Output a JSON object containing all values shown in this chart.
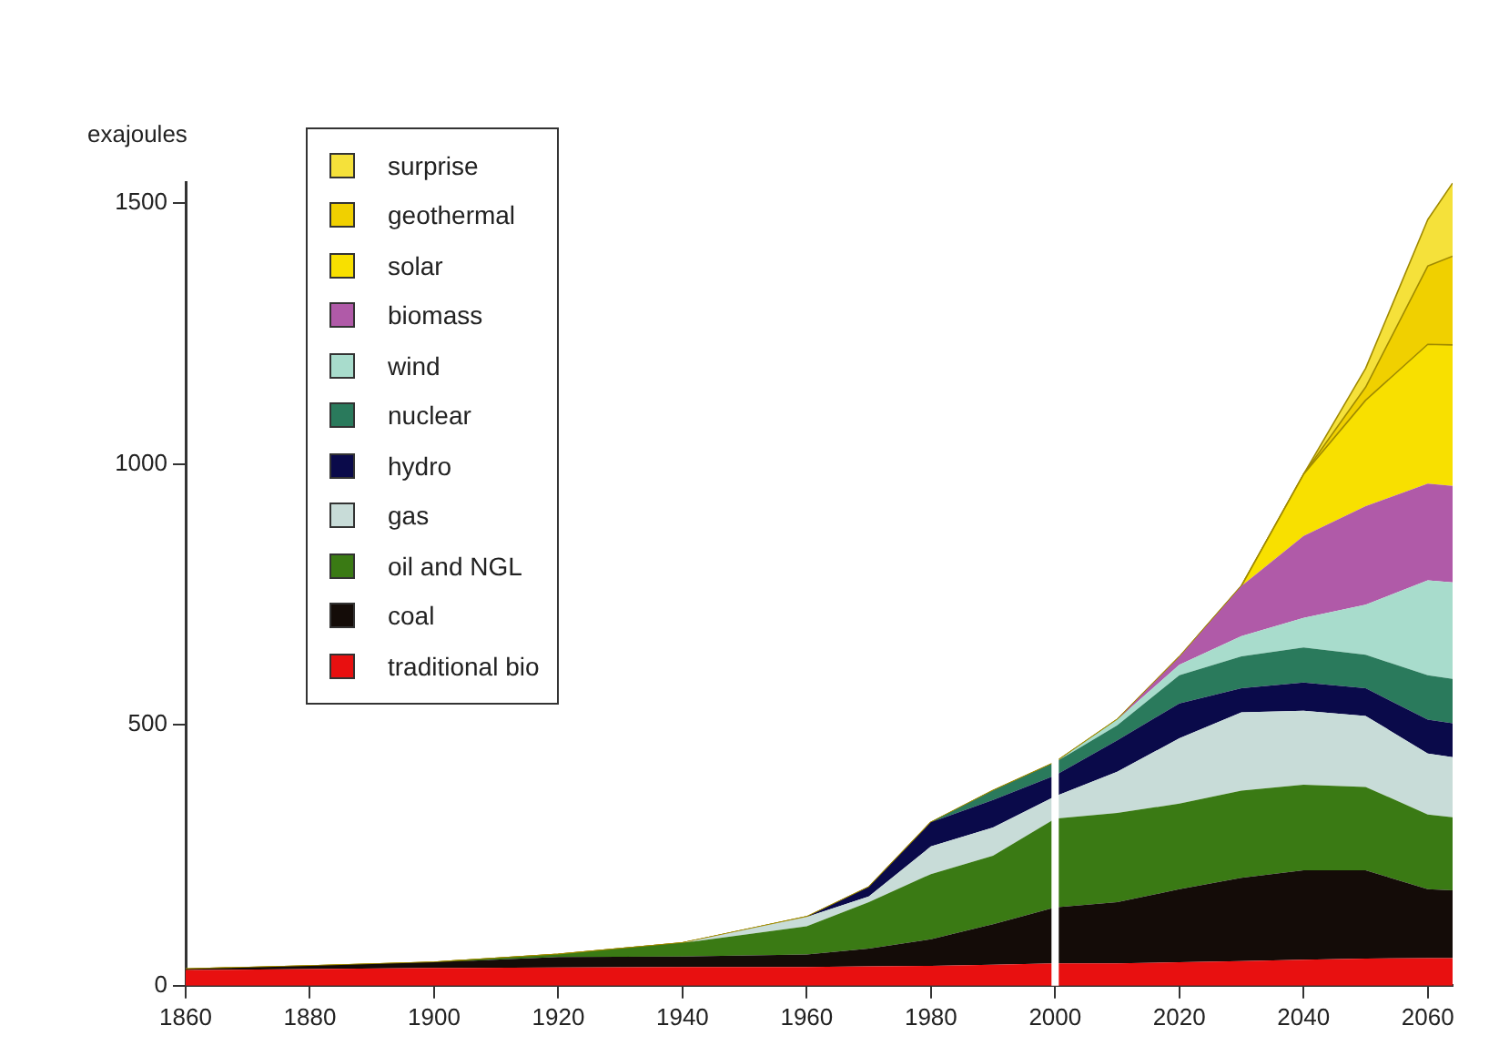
{
  "chart_data": {
    "type": "area",
    "stacked": true,
    "ylabel": "exajoules",
    "legend": "top left",
    "grid": false,
    "x": [
      1860,
      1880,
      1900,
      1920,
      1940,
      1960,
      1970,
      1980,
      1990,
      2000,
      2010,
      2020,
      2030,
      2040,
      2050,
      2060,
      2064
    ],
    "xlim": [
      1860,
      2064
    ],
    "xticks": [
      1860,
      1880,
      1900,
      1920,
      1940,
      1960,
      1980,
      2000,
      2020,
      2040,
      2060
    ],
    "ylim": [
      0,
      1540
    ],
    "yticks": [
      0,
      500,
      1000,
      1500
    ],
    "ref_lines": [
      {
        "axis": "x",
        "value": 2000,
        "color": "#ffffff"
      }
    ],
    "series": [
      {
        "name": "traditional bio",
        "color": "#e81010",
        "values": [
          30,
          32,
          34,
          35,
          36,
          36,
          37,
          38,
          40,
          43,
          43,
          45,
          47,
          50,
          52,
          53,
          53
        ]
      },
      {
        "name": "coal",
        "color": "#140c08",
        "values": [
          2,
          6,
          11,
          20,
          20,
          24,
          34,
          51,
          78,
          107,
          117,
          140,
          160,
          171,
          169,
          132,
          130
        ]
      },
      {
        "name": "oil and NGL",
        "color": "#3a7a14",
        "values": [
          0,
          0,
          0,
          5,
          26,
          54,
          89,
          125,
          131,
          170,
          171,
          164,
          167,
          164,
          160,
          143,
          140
        ]
      },
      {
        "name": "gas",
        "color": "#c8dcd8",
        "values": [
          0,
          0,
          0,
          0,
          0,
          18,
          11,
          53,
          54,
          43,
          79,
          125,
          150,
          142,
          136,
          117,
          115
        ]
      },
      {
        "name": "hydro",
        "color": "#0a0a4a",
        "values": [
          0,
          0,
          0,
          0,
          0,
          0,
          18,
          46,
          53,
          40,
          60,
          67,
          46,
          54,
          53,
          65,
          65
        ]
      },
      {
        "name": "nuclear",
        "color": "#2a7a5c",
        "values": [
          0,
          0,
          0,
          0,
          0,
          0,
          0,
          0,
          18,
          25,
          29,
          54,
          61,
          67,
          64,
          85,
          85
        ]
      },
      {
        "name": "wind",
        "color": "#a8dccc",
        "values": [
          0,
          0,
          0,
          0,
          0,
          0,
          0,
          0,
          0,
          0,
          11,
          20,
          39,
          57,
          96,
          182,
          185
        ]
      },
      {
        "name": "biomass",
        "color": "#b05aa8",
        "values": [
          0,
          0,
          0,
          0,
          0,
          0,
          0,
          0,
          0,
          0,
          0,
          15,
          96,
          157,
          189,
          185,
          185
        ]
      },
      {
        "name": "solar",
        "color": "#f8e000",
        "values": [
          0,
          0,
          0,
          0,
          0,
          0,
          0,
          0,
          0,
          0,
          0,
          0,
          0,
          118,
          203,
          267,
          270
        ]
      },
      {
        "name": "geothermal",
        "color": "#f0d000",
        "values": [
          0,
          0,
          0,
          0,
          0,
          0,
          0,
          0,
          0,
          0,
          0,
          0,
          0,
          0,
          25,
          150,
          170
        ]
      },
      {
        "name": "surprise",
        "color": "#f5e13a",
        "values": [
          0,
          0,
          0,
          0,
          0,
          0,
          0,
          0,
          0,
          0,
          0,
          0,
          0,
          0,
          36,
          89,
          140
        ]
      }
    ]
  }
}
